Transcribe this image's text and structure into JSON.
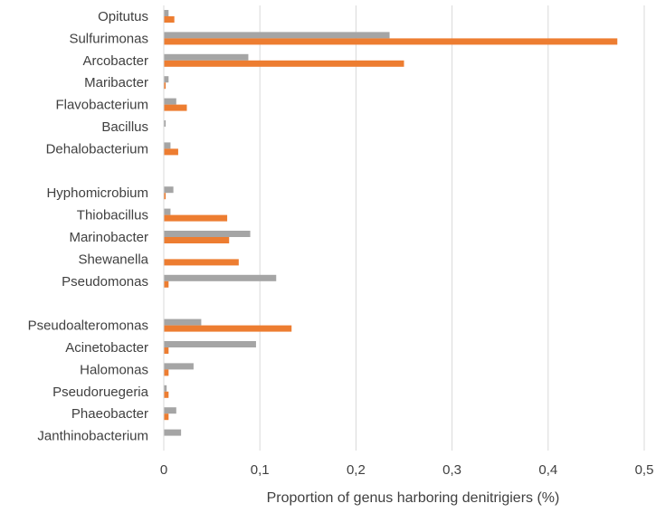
{
  "chart_data": {
    "type": "bar",
    "orientation": "horizontal",
    "title": "",
    "xlabel": "Proportion of genus harboring denitrigiers (%)",
    "ylabel": "",
    "xlim": [
      0,
      0.5
    ],
    "x_ticks": [
      "0",
      "0,1",
      "0,2",
      "0,3",
      "0,4",
      "0,5"
    ],
    "grid": "vertical",
    "legend": "none",
    "categories": [
      "Opitutus",
      "Sulfurimonas",
      "Arcobacter",
      "Maribacter",
      "Flavobacterium",
      "Bacillus",
      "Dehalobacterium",
      "",
      "Hyphomicrobium",
      "Thiobacillus",
      "Marinobacter",
      "Shewanella",
      "Pseudomonas",
      "",
      "Pseudoalteromonas",
      "Acinetobacter",
      "Halomonas",
      "Pseudoruegeria",
      "Phaeobacter",
      "Janthinobacterium"
    ],
    "series": [
      {
        "color": "#a5a5a5",
        "values": [
          0.005,
          0.235,
          0.088,
          0.005,
          0.013,
          0.002,
          0.007,
          null,
          0.01,
          0.007,
          0.09,
          0.0,
          0.117,
          null,
          0.039,
          0.096,
          0.031,
          0.003,
          0.013,
          0.018
        ]
      },
      {
        "color": "#ed7d31",
        "values": [
          0.011,
          0.472,
          0.25,
          0.002,
          0.024,
          0.0,
          0.015,
          null,
          0.002,
          0.066,
          0.068,
          0.078,
          0.005,
          null,
          0.133,
          0.005,
          0.005,
          0.005,
          0.005,
          0.0
        ]
      }
    ]
  }
}
